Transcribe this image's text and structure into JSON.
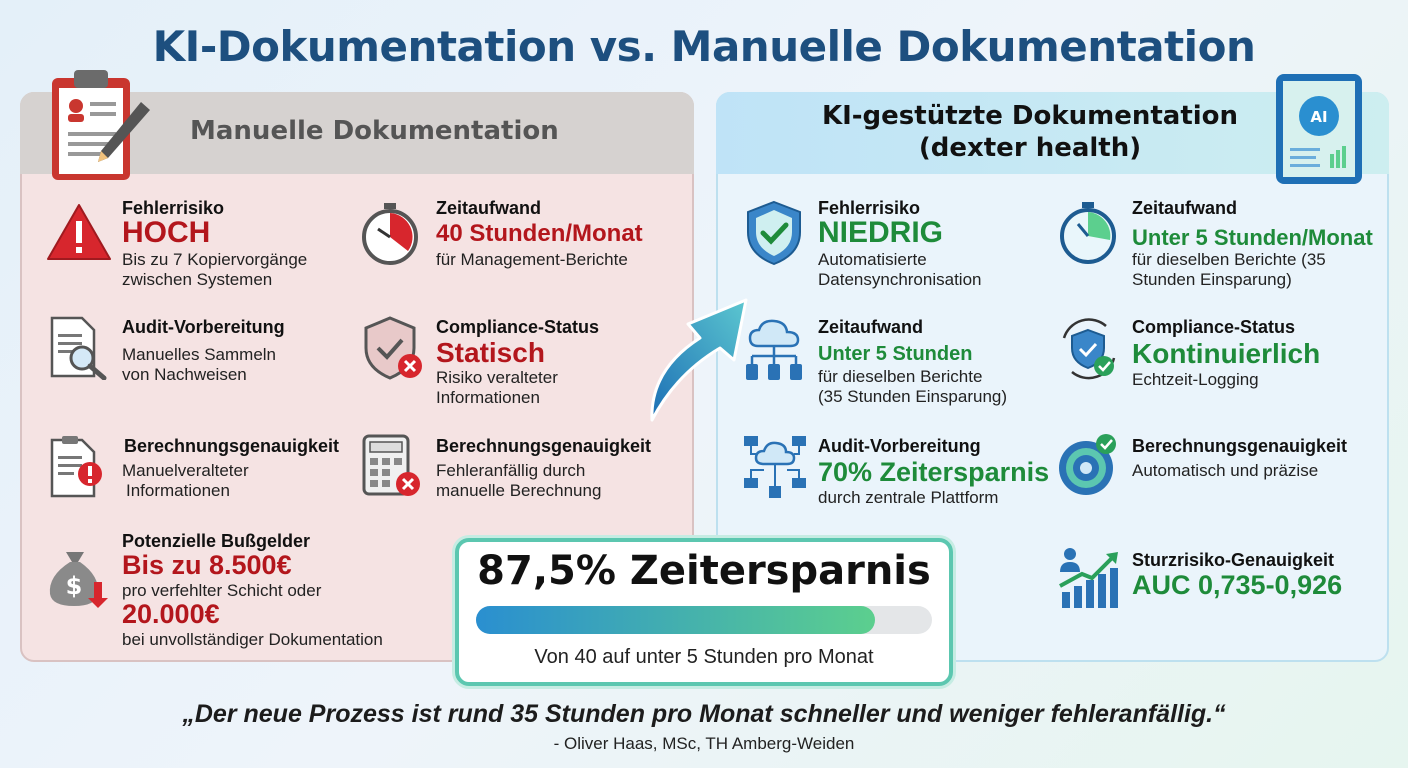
{
  "title": "KI-Dokumentation vs. Manuelle Dokumentation",
  "manual": {
    "heading": "Manuelle Dokumentation",
    "items": [
      {
        "label": "Fehlerrisiko",
        "value": "HOCH",
        "desc1": "Bis zu 7 Kopiervorgänge",
        "desc2": "zwischen Systemen"
      },
      {
        "label": "Zeitaufwand",
        "value": "40 Stunden/Monat",
        "desc1": "für Management-Berichte"
      },
      {
        "label": "Audit-Vorbereitung",
        "desc1": "Manuelles Sammeln",
        "desc2": "von Nachweisen"
      },
      {
        "label": "Compliance-Status",
        "value": "Statisch",
        "desc1": "Risiko veralteter",
        "desc2": "Informationen"
      },
      {
        "label": "Berechnungsgenauigkeit",
        "desc1": "Manuelveralteter",
        "desc2": "Informationen"
      },
      {
        "label": "Berechnungsgenauigkeit",
        "desc1": "Fehleranfällig durch",
        "desc2": "manuelle Berechnung"
      },
      {
        "label": "Potenzielle Bußgelder",
        "value": "Bis zu 8.500€",
        "desc1": "pro verfehlter Schicht oder",
        "value2": "20.000€",
        "desc2": "bei unvollständiger Dokumentation"
      }
    ]
  },
  "ai": {
    "heading1": "KI-gestützte Dokumentation",
    "heading2": "(dexter health)",
    "items": [
      {
        "label": "Fehlerrisiko",
        "value": "NIEDRIG",
        "desc1": "Automatisierte",
        "desc2": "Datensynchronisation"
      },
      {
        "label": "Zeitaufwand",
        "value": "Unter 5 Stunden/Monat",
        "desc1": "für dieselben Berichte (35",
        "desc2": "Stunden Einsparung)"
      },
      {
        "label": "Zeitaufwand",
        "value": "Unter 5 Stunden",
        "desc1": "für dieselben Berichte",
        "desc2": "(35 Stunden Einsparung)"
      },
      {
        "label": "Compliance-Status",
        "value": "Kontinuierlich",
        "desc1": "Echtzeit-Logging"
      },
      {
        "label": "Audit-Vorbereitung",
        "value": "70% Zeitersparnis",
        "desc1": "durch zentrale Plattform"
      },
      {
        "label": "Berechnungsgenauigkeit",
        "desc1": "Automatisch und präzise"
      },
      {
        "label": "Sturzrisiko-Genauigkeit",
        "value": "AUC 0,735-0,926"
      }
    ]
  },
  "savings": {
    "headline": "87,5% Zeitersparnis",
    "progress_fraction": 0.875,
    "subtext": "Von 40 auf unter 5 Stunden pro Monat"
  },
  "quote": {
    "text": "„Der neue Prozess ist rund 35 Stunden pro Monat schneller und weniger fehleranfällig.“",
    "author": "- Oliver Haas, MSc, TH Amberg-Weiden"
  },
  "colors": {
    "red_accent": "#b3161c",
    "green_accent": "#1e8b3a",
    "title_blue": "#1d4f7f",
    "bar_start": "#2a8fd0",
    "bar_end": "#5ccf8e"
  },
  "icons": [
    "clipboard-icon",
    "warning-icon",
    "stopwatch-icon",
    "document-search-icon",
    "shield-x-icon",
    "document-alert-icon",
    "calculator-x-icon",
    "money-bag-icon",
    "tablet-ai-icon",
    "shield-check-icon",
    "stopwatch-green-icon",
    "cloud-network-icon",
    "shield-cycle-icon",
    "network-icon",
    "target-check-icon",
    "growth-chart-icon",
    "arrow-icon"
  ]
}
